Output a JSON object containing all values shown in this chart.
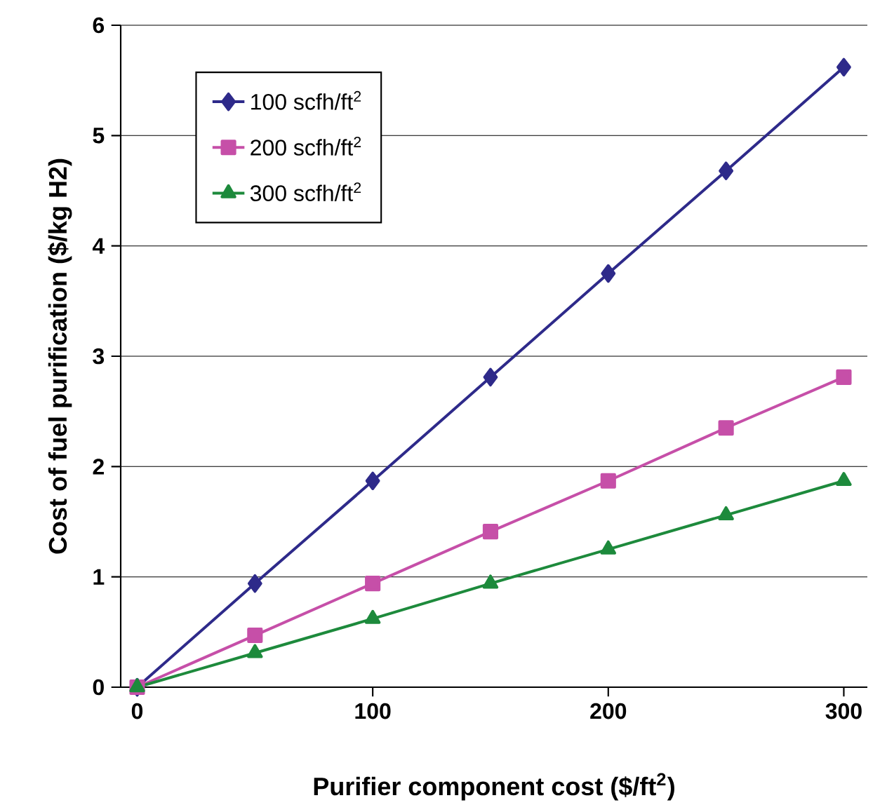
{
  "chart_data": {
    "type": "line",
    "xlabel": "Purifier component cost ($/ft$^{2}$)",
    "ylabel": "Cost of fuel purification ($/kg H2)",
    "x": [
      0,
      50,
      100,
      150,
      200,
      250,
      300
    ],
    "series": [
      {
        "name": "100 scfh/ft$^{2}$",
        "color": "#2e2a8a",
        "marker": "diamond",
        "values": [
          0,
          0.94,
          1.87,
          2.81,
          3.75,
          4.68,
          5.62
        ]
      },
      {
        "name": "200 scfh/ft$^{2}$",
        "color": "#c64fa8",
        "marker": "square",
        "values": [
          0,
          0.47,
          0.94,
          1.41,
          1.87,
          2.35,
          2.81
        ]
      },
      {
        "name": "300 scfh/ft$^{2}$",
        "color": "#1d8a3c",
        "marker": "triangle",
        "values": [
          0,
          0.31,
          0.62,
          0.94,
          1.25,
          1.56,
          1.87
        ]
      }
    ],
    "xlim": [
      -7,
      310
    ],
    "ylim": [
      0,
      6
    ],
    "xticks": [
      0,
      100,
      200,
      300
    ],
    "yticks": [
      0,
      1,
      2,
      3,
      4,
      5,
      6
    ],
    "grid": "y",
    "legend": "top left",
    "line_style": "solid"
  }
}
